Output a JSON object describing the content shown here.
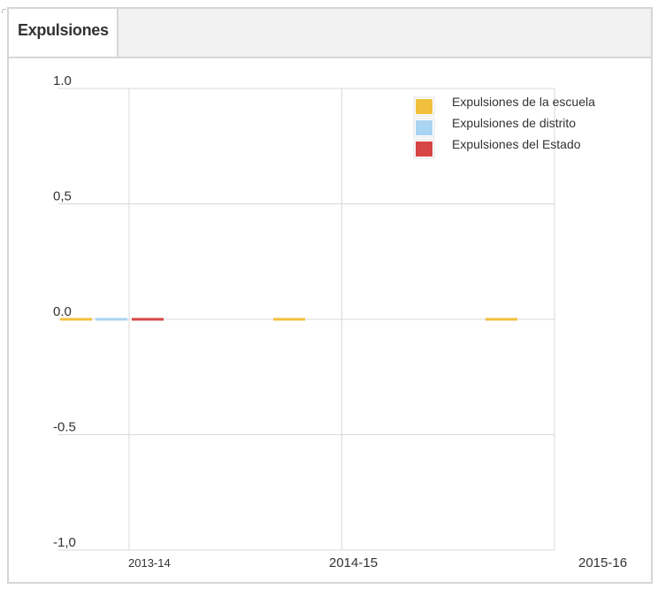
{
  "panel": {
    "title": "Expulsiones"
  },
  "colors": {
    "school": "#f0c03c",
    "district": "#a9d4f2",
    "state": "#d64545",
    "grid": "#d9d9d9"
  },
  "chart_data": {
    "type": "bar",
    "title": "",
    "xlabel": "",
    "ylabel": "",
    "categories": [
      "2013-14",
      "2014-15",
      "2015-16"
    ],
    "y_ticks": [
      "1.0",
      "0,5",
      "0.0",
      "-0.5",
      "-1,0"
    ],
    "y_tick_values": [
      1.0,
      0.5,
      0.0,
      -0.5,
      -1.0
    ],
    "ylim": [
      -1.0,
      1.0
    ],
    "grid": true,
    "legend_position": "top-right",
    "series": [
      {
        "name": "Expulsiones de la escuela",
        "values": [
          0,
          0,
          0
        ],
        "color": "#f0c03c"
      },
      {
        "name": "Expulsiones de distrito",
        "values": [
          0,
          null,
          null
        ],
        "color": "#a9d4f2"
      },
      {
        "name": "Expulsiones del Estado",
        "values": [
          0,
          null,
          null
        ],
        "color": "#d64545"
      }
    ]
  }
}
